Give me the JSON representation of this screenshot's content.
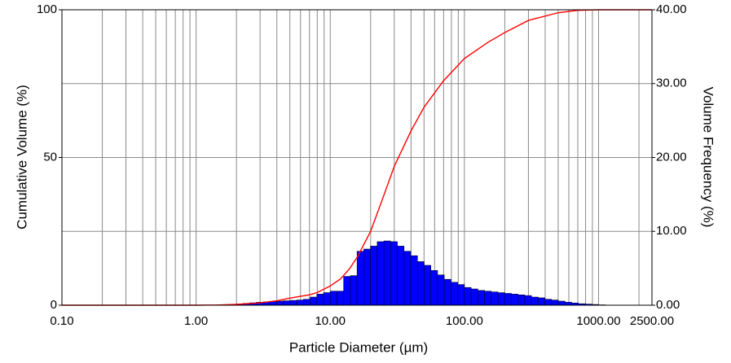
{
  "chart_data": {
    "type": "histogram",
    "xlabel": "Particle Diameter (µm)",
    "ylabel": "Cumulative Volume (%)",
    "y2label": "Volume Frequency (%)",
    "xscale": "log",
    "xlim": [
      0.1,
      2500
    ],
    "xticks": [
      {
        "value": 0.1,
        "label": "0.10"
      },
      {
        "value": 1,
        "label": "1.00"
      },
      {
        "value": 10,
        "label": "10.00"
      },
      {
        "value": 100,
        "label": "100.00"
      },
      {
        "value": 1000,
        "label": "1000.00"
      },
      {
        "value": 2500,
        "label": "2500.00"
      }
    ],
    "xgrid": [
      0.2,
      0.3,
      0.4,
      0.5,
      0.6,
      0.7,
      0.8,
      0.9,
      2,
      3,
      4,
      5,
      6,
      7,
      8,
      9,
      20,
      30,
      40,
      50,
      60,
      70,
      80,
      90,
      200,
      300,
      400,
      500,
      600,
      700,
      800,
      900,
      2000
    ],
    "ylim": [
      0,
      100
    ],
    "yticks": [
      0,
      50,
      100
    ],
    "y2lim": [
      0,
      40
    ],
    "y2ticks": [
      {
        "value": 0,
        "label": "0.00"
      },
      {
        "value": 10,
        "label": "10.00"
      },
      {
        "value": 20,
        "label": "20.00"
      },
      {
        "value": 30,
        "label": "30.00"
      },
      {
        "value": 40,
        "label": "40.00"
      }
    ],
    "grid": true,
    "bins": [
      1.259,
      1.413,
      1.585,
      1.778,
      1.995,
      2.239,
      2.512,
      2.818,
      3.162,
      3.548,
      3.981,
      4.467,
      5.012,
      5.623,
      6.31,
      7.079,
      7.943,
      8.913,
      10,
      11.22,
      12.59,
      14.13,
      15.85,
      17.78,
      19.95,
      22.39,
      25.12,
      28.18,
      31.62,
      35.48,
      39.81,
      44.67,
      50.12,
      56.23,
      63.1,
      70.79,
      79.43,
      89.13,
      100,
      112.2,
      125.9,
      141.3,
      158.5,
      177.8,
      199.5,
      223.9,
      251.2,
      281.8,
      316.2,
      354.8,
      398.1,
      446.7,
      501.2,
      562.3,
      631,
      707.9,
      794.3,
      891.3,
      1000,
      1122
    ],
    "values": [
      0.02,
      0.05,
      0.08,
      0.12,
      0.18,
      0.25,
      0.32,
      0.4,
      0.45,
      0.5,
      0.55,
      0.6,
      0.65,
      0.7,
      0.8,
      1.1,
      1.5,
      1.7,
      1.9,
      1.9,
      3.9,
      4.0,
      7.3,
      7.6,
      8.0,
      8.6,
      8.7,
      8.6,
      8.0,
      7.3,
      6.7,
      5.9,
      5.4,
      4.7,
      4.1,
      3.5,
      3.1,
      2.8,
      2.4,
      2.2,
      2.0,
      1.9,
      1.8,
      1.7,
      1.6,
      1.5,
      1.4,
      1.3,
      1.1,
      1.0,
      0.8,
      0.7,
      0.55,
      0.4,
      0.3,
      0.2,
      0.15,
      0.1,
      0.05
    ],
    "color": "#0000ff",
    "axis": "y2",
    "line": {
      "color": "#ff0000",
      "x": [
        0.1,
        1,
        1.5,
        2,
        3,
        4,
        5,
        6,
        7,
        8,
        10,
        12,
        14,
        16,
        18,
        20,
        25,
        30,
        40,
        50,
        70,
        100,
        150,
        200,
        300,
        500,
        700,
        1000,
        2500
      ],
      "values": [
        0,
        0,
        0.1,
        0.3,
        0.8,
        1.5,
        2.4,
        3.0,
        3.5,
        4.3,
        6.5,
        9,
        12.5,
        16.5,
        21,
        25,
        37,
        47,
        59,
        67,
        76,
        83.5,
        89,
        92.3,
        96.4,
        99,
        99.8,
        100,
        100
      ]
    }
  }
}
